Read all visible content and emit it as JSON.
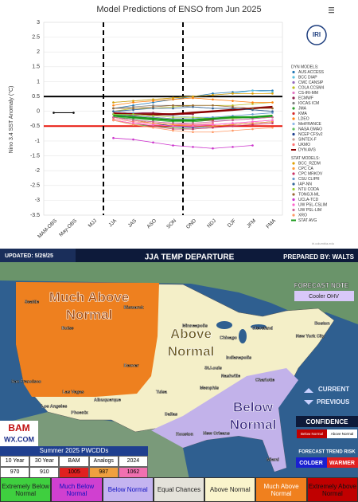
{
  "chart_data": {
    "type": "line",
    "title": "Model Predictions of ENSO from Jun 2025",
    "y_label": "Nino 3.4 SST Anomaly (°C)",
    "logo": "IRI",
    "credit": "iri.columbia.edu",
    "categories": [
      "MAM-OBS",
      "May-OBS",
      "MJJ",
      "JJA",
      "JAS",
      "ASO",
      "SON",
      "OND",
      "NDJ",
      "DJF",
      "JFM",
      "FMA"
    ],
    "ylim": [
      -3.5,
      3
    ],
    "yticks": [
      -3.5,
      -3,
      -2.5,
      -2,
      -1.5,
      -1,
      -0.5,
      0,
      0.5,
      1,
      1.5,
      2,
      2.5,
      3
    ],
    "reference_lines": [
      0.5,
      -0.5
    ],
    "reference_colors": [
      "#000000",
      "#e8170b"
    ],
    "observed": {
      "color": "#000000",
      "values": [
        -0.05,
        -0.05,
        null,
        null,
        null,
        null,
        null,
        null,
        null,
        null,
        null,
        null
      ]
    },
    "legend_groups": [
      "DYN MODELS:",
      "STAT MODELS:"
    ],
    "series": [
      {
        "name": "AUS ACCESS",
        "group": 0,
        "color": "#1f77b4",
        "values": [
          null,
          null,
          null,
          0.1,
          0.2,
          0.3,
          0.4,
          0.5,
          0.6,
          0.65,
          0.7,
          0.7
        ]
      },
      {
        "name": "BCC DIAP",
        "group": 0,
        "color": "#5bc0de",
        "values": [
          null,
          null,
          null,
          0.3,
          0.35,
          0.4,
          0.45,
          0.5,
          0.55,
          0.6,
          0.7,
          0.65
        ]
      },
      {
        "name": "CMC CANSIP",
        "group": 0,
        "color": "#9467bd",
        "values": [
          null,
          null,
          null,
          -0.1,
          -0.2,
          -0.25,
          -0.3,
          -0.3,
          -0.3,
          -0.3,
          -0.25,
          -0.2
        ]
      },
      {
        "name": "COLA CCSM4",
        "group": 0,
        "color": "#bcbd22",
        "values": [
          null,
          null,
          null,
          0,
          0.1,
          0.1,
          0.15,
          0.2,
          0.2,
          0.2,
          0.25,
          0.3
        ]
      },
      {
        "name": "CS-IRI-MM",
        "group": 0,
        "color": "#e377c2",
        "values": [
          null,
          null,
          null,
          -0.2,
          -0.3,
          -0.35,
          -0.4,
          -0.45,
          -0.45,
          -0.4,
          -0.35,
          -0.3
        ]
      },
      {
        "name": "ECMWF",
        "group": 0,
        "color": "#8c1c4b",
        "values": [
          null,
          null,
          null,
          0,
          -0.05,
          -0.05,
          -0.1,
          -0.1,
          null,
          null,
          null,
          null
        ]
      },
      {
        "name": "IOCAS ICM",
        "group": 0,
        "color": "#7f7f7f",
        "values": [
          null,
          null,
          null,
          0.1,
          0.15,
          0.2,
          0.2,
          0.15,
          0.1,
          0.1,
          0.05,
          0
        ]
      },
      {
        "name": "JMA",
        "group": 0,
        "color": "#2ca02c",
        "values": [
          null,
          null,
          null,
          -0.2,
          -0.25,
          -0.3,
          -0.35,
          -0.35,
          -0.3,
          null,
          null,
          null
        ]
      },
      {
        "name": "KMA",
        "group": 0,
        "color": "#d62728",
        "values": [
          null,
          null,
          null,
          -0.1,
          -0.15,
          -0.2,
          -0.25,
          -0.3,
          -0.3,
          null,
          null,
          null
        ]
      },
      {
        "name": "LDEO",
        "group": 0,
        "color": "#ff7f0e",
        "values": [
          null,
          null,
          null,
          0.2,
          0.3,
          0.35,
          0.4,
          0.45,
          0.4,
          0.35,
          0.3,
          0.3
        ]
      },
      {
        "name": "MetFRANCE",
        "group": 0,
        "color": "#8fb8e8",
        "values": [
          null,
          null,
          null,
          0,
          -0.05,
          -0.1,
          -0.15,
          -0.2,
          -0.2,
          null,
          null,
          null
        ]
      },
      {
        "name": "NASA GMAO",
        "group": 0,
        "color": "#60c060",
        "values": [
          null,
          null,
          null,
          -0.3,
          -0.45,
          -0.5,
          -0.55,
          -0.6,
          -0.55,
          null,
          null,
          null
        ]
      },
      {
        "name": "NCEP CFSv2",
        "group": 0,
        "color": "#1f3f8f",
        "values": [
          null,
          null,
          null,
          -0.2,
          -0.3,
          -0.4,
          -0.5,
          -0.55,
          -0.5,
          -0.45,
          -0.4,
          -0.35
        ]
      },
      {
        "name": "SINTEX-F",
        "group": 0,
        "color": "#c49c94",
        "values": [
          null,
          null,
          null,
          -0.1,
          -0.1,
          -0.15,
          -0.1,
          -0.05,
          0,
          0.05,
          0.1,
          0.1
        ]
      },
      {
        "name": "UKMO",
        "group": 0,
        "color": "#ff6f6f",
        "values": [
          null,
          null,
          null,
          -0.25,
          -0.35,
          -0.4,
          -0.45,
          -0.45,
          -0.4,
          null,
          null,
          null
        ]
      },
      {
        "name": "DYN AVG",
        "group": 0,
        "color": "#8b0000",
        "width": 2.5,
        "values": [
          null,
          null,
          null,
          -0.07,
          -0.1,
          -0.1,
          -0.1,
          -0.05,
          0,
          0.05,
          0.1,
          0.15
        ]
      },
      {
        "name": "BCC_RZDM",
        "group": 1,
        "color": "#e0a000",
        "values": [
          null,
          null,
          null,
          0.3,
          0.35,
          0.4,
          0.45,
          0.5,
          0.55,
          0.6,
          0.6,
          0.6
        ]
      },
      {
        "name": "CPC CA",
        "group": 1,
        "color": "#ff9933",
        "values": [
          null,
          null,
          null,
          -0.2,
          -0.3,
          -0.4,
          -0.45,
          -0.5,
          -0.5,
          -0.45,
          -0.4,
          -0.35
        ]
      },
      {
        "name": "CPC MRKOV",
        "group": 1,
        "color": "#cc3366",
        "values": [
          null,
          null,
          null,
          -0.3,
          -0.4,
          -0.5,
          -0.6,
          -0.6,
          -0.55,
          -0.5,
          -0.45,
          -0.4
        ]
      },
      {
        "name": "CSU CLIPR",
        "group": 1,
        "color": "#6699cc",
        "values": [
          null,
          null,
          null,
          -0.1,
          -0.15,
          -0.2,
          -0.25,
          -0.25,
          -0.2,
          -0.15,
          -0.1,
          -0.05
        ]
      },
      {
        "name": "IAP-NN",
        "group": 1,
        "color": "#336699",
        "values": [
          null,
          null,
          null,
          0,
          0.05,
          0.1,
          0.1,
          0.15,
          0.1,
          0.1,
          0.05,
          0
        ]
      },
      {
        "name": "NTU CODA",
        "group": 1,
        "color": "#99cc33",
        "values": [
          null,
          null,
          null,
          -0.1,
          -0.1,
          -0.15,
          -0.2,
          -0.2,
          -0.25,
          -0.25,
          -0.2,
          -0.2
        ]
      },
      {
        "name": "TONGJI-ML",
        "group": 1,
        "color": "#996633",
        "values": [
          null,
          null,
          null,
          0.1,
          0.1,
          0.15,
          0.2,
          0.2,
          0.2,
          0.15,
          0.1,
          0.1
        ]
      },
      {
        "name": "UCLA-TCD",
        "group": 1,
        "color": "#cc33cc",
        "values": [
          null,
          null,
          null,
          -0.9,
          -0.95,
          -1.05,
          -1.15,
          -1.2,
          -1.25,
          -1.2,
          -1.15,
          null
        ]
      },
      {
        "name": "UW PSL-CSLIM",
        "group": 1,
        "color": "#ff66cc",
        "values": [
          null,
          null,
          null,
          -0.3,
          -0.4,
          -0.45,
          -0.5,
          -0.5,
          -0.45,
          -0.4,
          -0.35,
          -0.3
        ]
      },
      {
        "name": "UW PSL-LIM",
        "group": 1,
        "color": "#cc6699",
        "values": [
          null,
          null,
          null,
          -0.2,
          -0.3,
          -0.35,
          -0.4,
          -0.4,
          -0.35,
          -0.3,
          -0.25,
          -0.2
        ]
      },
      {
        "name": "XRO",
        "group": 1,
        "color": "#ff9966",
        "values": [
          null,
          null,
          null,
          -0.3,
          -0.45,
          -0.55,
          -0.65,
          -0.7,
          -0.7,
          -0.65,
          -0.6,
          -0.55
        ]
      },
      {
        "name": "STAT AVG",
        "group": 1,
        "color": "#1a9a1a",
        "width": 2.5,
        "values": [
          null,
          null,
          null,
          -0.15,
          -0.2,
          -0.25,
          -0.3,
          -0.3,
          -0.25,
          -0.2,
          -0.2,
          -0.15
        ]
      }
    ]
  },
  "map": {
    "updated": "UPDATED: 5/29/25",
    "title": "JJA TEMP DEPARTURE",
    "prepared": "PREPARED BY: WALTS",
    "note_title": "FORECAST NOTE",
    "note": "Cooler OHV",
    "regions": [
      {
        "lines": [
          "Much Above",
          "Normal"
        ]
      },
      {
        "lines": [
          "Above",
          "Normal"
        ]
      },
      {
        "lines": [
          "Below",
          "Normal"
        ]
      }
    ],
    "cities": [
      "Seattle",
      "Boise",
      "Bismarck",
      "Minneapolis",
      "Denver",
      "San Francisco",
      "Las Vegas",
      "Los Angeles",
      "Phoenix",
      "Albuquerque",
      "Tulsa",
      "Dallas",
      "Houston",
      "New Orleans",
      "Memphis",
      "Nashville",
      "Charlotte",
      "Miami",
      "Chicago",
      "Cleveland",
      "Indianapolis",
      "St.Louis",
      "Boston",
      "New York City"
    ],
    "nav": [
      "CURRENT",
      "PREVIOUS"
    ],
    "confidence": "CONFIDENCE",
    "confidence_scale": [
      "Below Normal",
      "Above Normal"
    ],
    "trend": "FORECAST TREND RISK",
    "trend_scale": [
      "COLDER",
      "WARMER"
    ],
    "logo": [
      "BAM",
      "WX.COM"
    ],
    "table_title": "Summer 2025 PWCDDs",
    "table": {
      "header": [
        "10 Year",
        "30 Year",
        "BAM",
        "Analogs",
        "2024"
      ],
      "values": [
        "970",
        "910",
        "1005",
        "987",
        "1062"
      ]
    },
    "legend": [
      {
        "label": "Extremely Below Normal",
        "color": "#3fcf3f"
      },
      {
        "label": "Much Below Normal",
        "color": "#d040d0"
      },
      {
        "label": "Below Normal",
        "color": "#c4b4f0"
      },
      {
        "label": "Equal Chances",
        "color": "#e4e2da"
      },
      {
        "label": "Above Normal",
        "color": "#faf4cc"
      },
      {
        "label": "Much Above Normal",
        "color": "#f0801e"
      },
      {
        "label": "Extremely Above Normal",
        "color": "#c00000"
      }
    ]
  }
}
